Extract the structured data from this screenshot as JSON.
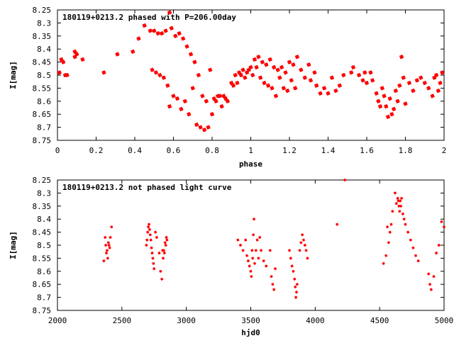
{
  "chart_data": [
    {
      "type": "scatter",
      "title": "180119+0213.2 phased with P=206.00day",
      "xlabel": "phase",
      "ylabel": "I[mag]",
      "xlim": [
        0,
        2
      ],
      "ylim": [
        8.25,
        8.75
      ],
      "y_inverted": true,
      "xticks": [
        "0",
        "0.2",
        "0.4",
        "0.6",
        "0.8",
        "1",
        "1.2",
        "1.4",
        "1.6",
        "1.8",
        "2"
      ],
      "yticks": [
        "8.25",
        "8.3",
        "8.35",
        "8.4",
        "8.45",
        "8.5",
        "8.55",
        "8.6",
        "8.65",
        "8.7",
        "8.75"
      ],
      "grid": false,
      "marker_color": "#ff0000",
      "series": [
        {
          "x": [
            0.01,
            0.02,
            0.03,
            0.04,
            0.05,
            0.09,
            0.09,
            0.1,
            0.13,
            0.24,
            0.31,
            0.39,
            0.42,
            0.45,
            0.48,
            0.49,
            0.5,
            0.51,
            0.52,
            0.53,
            0.54,
            0.55,
            0.56,
            0.57,
            0.58,
            0.58,
            0.59,
            0.6,
            0.61,
            0.62,
            0.63,
            0.64,
            0.65,
            0.66,
            0.67,
            0.68,
            0.69,
            0.7,
            0.71,
            0.72,
            0.73,
            0.74,
            0.75,
            0.76,
            0.77,
            0.78,
            0.79,
            0.8,
            0.81,
            0.82,
            0.83,
            0.84,
            0.85,
            0.86,
            0.87,
            0.88,
            0.9,
            0.91,
            0.92,
            0.93,
            0.94,
            0.95,
            0.96,
            0.97,
            0.98,
            0.99,
            1.0,
            1.01,
            1.02,
            1.03,
            1.04,
            1.05,
            1.06,
            1.07,
            1.08,
            1.09,
            1.1,
            1.11,
            1.12,
            1.13,
            1.14,
            1.15,
            1.16,
            1.17,
            1.18,
            1.19,
            1.2,
            1.21,
            1.22,
            1.23,
            1.24,
            1.26,
            1.28,
            1.3,
            1.31,
            1.33,
            1.34,
            1.36,
            1.38,
            1.4,
            1.42,
            1.44,
            1.46,
            1.48,
            1.52,
            1.53,
            1.56,
            1.58,
            1.59,
            1.6,
            1.62,
            1.63,
            1.65,
            1.66,
            1.67,
            1.68,
            1.69,
            1.7,
            1.71,
            1.72,
            1.73,
            1.74,
            1.75,
            1.76,
            1.77,
            1.78,
            1.79,
            1.8,
            1.82,
            1.84,
            1.86,
            1.88,
            1.9,
            1.92,
            1.94,
            1.95,
            1.96,
            1.97,
            1.98,
            1.99
          ],
          "y": [
            8.49,
            8.44,
            8.45,
            8.5,
            8.5,
            8.41,
            8.43,
            8.42,
            8.44,
            8.49,
            8.42,
            8.41,
            8.36,
            8.31,
            8.33,
            8.48,
            8.33,
            8.49,
            8.34,
            8.5,
            8.34,
            8.51,
            8.33,
            8.54,
            8.26,
            8.62,
            8.32,
            8.58,
            8.35,
            8.59,
            8.34,
            8.63,
            8.36,
            8.6,
            8.39,
            8.65,
            8.42,
            8.55,
            8.45,
            8.69,
            8.5,
            8.7,
            8.58,
            8.71,
            8.6,
            8.7,
            8.48,
            8.65,
            8.59,
            8.6,
            8.58,
            8.58,
            8.62,
            8.58,
            8.59,
            8.6,
            8.53,
            8.54,
            8.5,
            8.53,
            8.49,
            8.5,
            8.48,
            8.51,
            8.49,
            8.48,
            8.47,
            8.5,
            8.44,
            8.47,
            8.43,
            8.51,
            8.45,
            8.53,
            8.46,
            8.54,
            8.44,
            8.55,
            8.47,
            8.58,
            8.48,
            8.51,
            8.47,
            8.55,
            8.49,
            8.56,
            8.45,
            8.52,
            8.46,
            8.55,
            8.43,
            8.48,
            8.51,
            8.46,
            8.52,
            8.49,
            8.54,
            8.57,
            8.55,
            8.57,
            8.51,
            8.56,
            8.54,
            8.5,
            8.49,
            8.47,
            8.5,
            8.52,
            8.49,
            8.53,
            8.49,
            8.52,
            8.57,
            8.6,
            8.62,
            8.55,
            8.58,
            8.62,
            8.66,
            8.59,
            8.65,
            8.63,
            8.56,
            8.6,
            8.54,
            8.43,
            8.51,
            8.61,
            8.53,
            8.56,
            8.52,
            8.51,
            8.53,
            8.55,
            8.58,
            8.51,
            8.5,
            8.56,
            8.53,
            8.49
          ]
        }
      ]
    },
    {
      "type": "scatter",
      "title": "180119+0213.2 not phased light curve",
      "xlabel": "hjd0",
      "ylabel": "I[mag]",
      "xlim": [
        2000,
        5000
      ],
      "ylim": [
        8.25,
        8.75
      ],
      "y_inverted": true,
      "xticks": [
        "2000",
        "2500",
        "3000",
        "3500",
        "4000",
        "4500",
        "5000"
      ],
      "yticks": [
        "8.25",
        "8.3",
        "8.35",
        "8.4",
        "8.45",
        "8.5",
        "8.55",
        "8.6",
        "8.65",
        "8.7",
        "8.75"
      ],
      "grid": false,
      "marker_color": "#ff0000",
      "series": [
        {
          "x": [
            2360,
            2370,
            2375,
            2380,
            2385,
            2390,
            2395,
            2400,
            2405,
            2410,
            2420,
            2690,
            2695,
            2700,
            2705,
            2710,
            2715,
            2720,
            2725,
            2730,
            2735,
            2740,
            2745,
            2750,
            2760,
            2770,
            2790,
            2800,
            2810,
            2815,
            2820,
            2825,
            2830,
            2835,
            2840,
            2845,
            2850,
            3400,
            3420,
            3440,
            3460,
            3470,
            3480,
            3490,
            3500,
            3505,
            3510,
            3515,
            3520,
            3525,
            3530,
            3540,
            3550,
            3560,
            3570,
            3580,
            3600,
            3620,
            3650,
            3660,
            3670,
            3680,
            3690,
            3800,
            3810,
            3820,
            3830,
            3840,
            3845,
            3850,
            3855,
            3860,
            3880,
            3890,
            3900,
            3910,
            3920,
            3930,
            3940,
            4170,
            4230,
            4530,
            4550,
            4560,
            4570,
            4580,
            4590,
            4600,
            4620,
            4630,
            4640,
            4645,
            4650,
            4655,
            4660,
            4665,
            4670,
            4680,
            4690,
            4700,
            4720,
            4740,
            4760,
            4780,
            4800,
            4880,
            4890,
            4900,
            4920,
            4940,
            4960,
            4980,
            5000
          ],
          "y": [
            8.56,
            8.47,
            8.5,
            8.53,
            8.52,
            8.55,
            8.49,
            8.5,
            8.51,
            8.47,
            8.43,
            8.5,
            8.48,
            8.45,
            8.43,
            8.42,
            8.44,
            8.46,
            8.48,
            8.51,
            8.53,
            8.55,
            8.57,
            8.59,
            8.45,
            8.47,
            8.53,
            8.6,
            8.63,
            8.52,
            8.55,
            8.52,
            8.53,
            8.49,
            8.5,
            8.47,
            8.48,
            8.48,
            8.5,
            8.52,
            8.48,
            8.54,
            8.56,
            8.58,
            8.6,
            8.62,
            8.52,
            8.55,
            8.46,
            8.4,
            8.57,
            8.52,
            8.48,
            8.55,
            8.47,
            8.52,
            8.56,
            8.58,
            8.52,
            8.62,
            8.65,
            8.67,
            8.59,
            8.52,
            8.55,
            8.58,
            8.6,
            8.63,
            8.66,
            8.7,
            8.68,
            8.65,
            8.52,
            8.49,
            8.46,
            8.48,
            8.5,
            8.52,
            8.55,
            8.42,
            8.25,
            8.57,
            8.54,
            8.43,
            8.49,
            8.45,
            8.42,
            8.37,
            8.3,
            8.34,
            8.32,
            8.33,
            8.35,
            8.37,
            8.33,
            8.35,
            8.32,
            8.38,
            8.4,
            8.42,
            8.45,
            8.48,
            8.51,
            8.54,
            8.56,
            8.61,
            8.65,
            8.67,
            8.62,
            8.53,
            8.5,
            8.41,
            8.43
          ]
        }
      ]
    }
  ]
}
